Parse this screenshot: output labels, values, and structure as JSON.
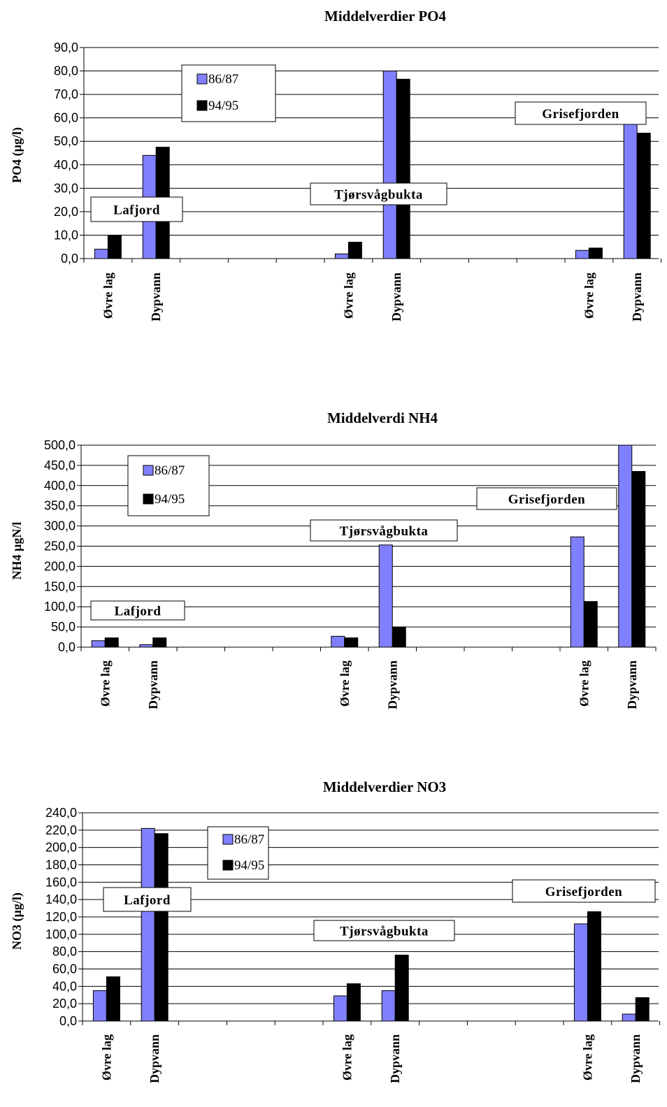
{
  "colors": {
    "s1": "#8080ff",
    "s2": "#000000",
    "grid": "#000000",
    "background": "#ffffff"
  },
  "chart_data": [
    {
      "type": "bar",
      "title": "Middelverdier PO4",
      "ylabel": "PO4 (µg/l)",
      "ylim": [
        0,
        90
      ],
      "yticks": [
        "0,0",
        "10,0",
        "20,0",
        "30,0",
        "40,0",
        "50,0",
        "60,0",
        "70,0",
        "80,0",
        "90,0"
      ],
      "categories": [
        "Øvre lag",
        "Dypvann",
        "",
        "",
        "",
        "Øvre lag",
        "Dypvann",
        "",
        "",
        "",
        "Øvre lag",
        "Dypvann"
      ],
      "series": [
        {
          "name": "86/87",
          "values": [
            4,
            44,
            null,
            null,
            null,
            2,
            80,
            null,
            null,
            null,
            3.5,
            59
          ]
        },
        {
          "name": "94/95",
          "values": [
            10,
            47.5,
            null,
            null,
            null,
            7,
            76.5,
            null,
            null,
            null,
            4.5,
            53.5
          ]
        }
      ],
      "annotations": [
        "Lafjord",
        "Tjørsvågbukta",
        "Grisefjorden"
      ],
      "legend": "upper-left",
      "grid": true
    },
    {
      "type": "bar",
      "title": "Middelverdi NH4",
      "ylabel": "NH4 µgN/l",
      "ylim": [
        0,
        500
      ],
      "yticks": [
        "0,0",
        "50,0",
        "100,0",
        "150,0",
        "200,0",
        "250,0",
        "300,0",
        "350,0",
        "400,0",
        "450,0",
        "500,0"
      ],
      "categories": [
        "Øvre lag",
        "Dypvann",
        "",
        "",
        "",
        "Øvre lag",
        "Dypvann",
        "",
        "",
        "",
        "Øvre lag",
        "Dypvann"
      ],
      "series": [
        {
          "name": "86/87",
          "values": [
            16,
            6,
            null,
            null,
            null,
            27,
            253,
            null,
            null,
            null,
            273,
            500
          ]
        },
        {
          "name": "94/95",
          "values": [
            23,
            23,
            null,
            null,
            null,
            23,
            50,
            null,
            null,
            null,
            113,
            435
          ]
        }
      ],
      "annotations": [
        "Lafjord",
        "Tjørsvågbukta",
        "Grisefjorden"
      ],
      "legend": "upper-left",
      "grid": true
    },
    {
      "type": "bar",
      "title": "Middelverdier NO3",
      "ylabel": "NO3 (µg/l)",
      "ylim": [
        0,
        240
      ],
      "yticks": [
        "0,0",
        "20,0",
        "40,0",
        "60,0",
        "80,0",
        "100,0",
        "120,0",
        "140,0",
        "160,0",
        "180,0",
        "200,0",
        "220,0",
        "240,0"
      ],
      "categories": [
        "Øvre lag",
        "Dypvann",
        "",
        "",
        "",
        "Øvre lag",
        "Dypvann",
        "",
        "",
        "",
        "Øvre lag",
        "Dypvann"
      ],
      "series": [
        {
          "name": "86/87",
          "values": [
            35,
            222,
            null,
            null,
            null,
            29,
            35,
            null,
            null,
            null,
            112,
            8
          ]
        },
        {
          "name": "94/95",
          "values": [
            51,
            216,
            null,
            null,
            null,
            43,
            76,
            null,
            null,
            null,
            126,
            27
          ]
        }
      ],
      "annotations": [
        "Lafjord",
        "Tjørsvågbukta",
        "Grisefjorden"
      ],
      "legend": "upper-center",
      "grid": true
    }
  ]
}
